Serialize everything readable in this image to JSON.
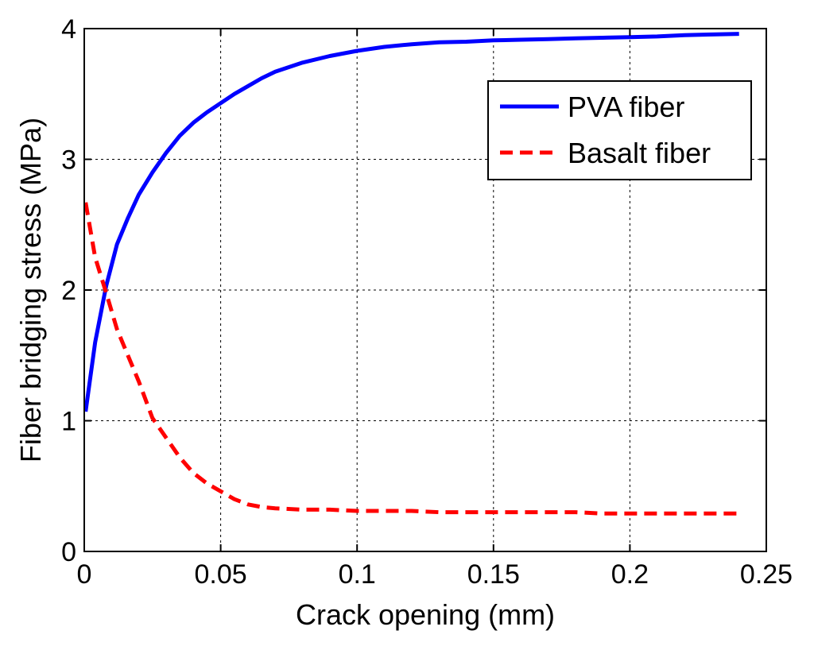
{
  "chart_data": {
    "type": "line",
    "title": "",
    "xlabel": "Crack opening (mm)",
    "ylabel": "Fiber bridging stress (MPa)",
    "xlim": [
      0,
      0.25
    ],
    "ylim": [
      0,
      4
    ],
    "xticks": [
      0,
      0.05,
      0.1,
      0.15,
      0.2,
      0.25
    ],
    "xtick_labels": [
      "0",
      "0.05",
      "0.1",
      "0.15",
      "0.2",
      "0.25"
    ],
    "yticks": [
      0,
      1,
      2,
      3,
      4
    ],
    "ytick_labels": [
      "0",
      "1",
      "2",
      "3",
      "4"
    ],
    "grid": true,
    "legend_position": "top-right",
    "series": [
      {
        "name": "PVA fiber",
        "color": "#0000ff",
        "style": "solid",
        "x": [
          0.0005,
          0.004,
          0.008,
          0.012,
          0.016,
          0.02,
          0.025,
          0.03,
          0.035,
          0.04,
          0.045,
          0.05,
          0.055,
          0.06,
          0.065,
          0.07,
          0.08,
          0.09,
          0.1,
          0.11,
          0.12,
          0.13,
          0.14,
          0.15,
          0.16,
          0.17,
          0.18,
          0.19,
          0.2,
          0.21,
          0.22,
          0.23,
          0.24
        ],
        "y": [
          1.07,
          1.6,
          2.03,
          2.35,
          2.55,
          2.73,
          2.9,
          3.05,
          3.18,
          3.28,
          3.36,
          3.43,
          3.5,
          3.56,
          3.62,
          3.67,
          3.74,
          3.79,
          3.83,
          3.86,
          3.88,
          3.895,
          3.9,
          3.91,
          3.915,
          3.92,
          3.925,
          3.93,
          3.935,
          3.94,
          3.95,
          3.955,
          3.96
        ]
      },
      {
        "name": "Basalt fiber",
        "color": "#ff0000",
        "style": "dashed",
        "x": [
          0.0005,
          0.004,
          0.008,
          0.012,
          0.016,
          0.02,
          0.025,
          0.03,
          0.035,
          0.04,
          0.045,
          0.05,
          0.055,
          0.06,
          0.065,
          0.07,
          0.08,
          0.09,
          0.1,
          0.11,
          0.12,
          0.13,
          0.14,
          0.15,
          0.16,
          0.17,
          0.18,
          0.19,
          0.2,
          0.21,
          0.22,
          0.23,
          0.24
        ],
        "y": [
          2.67,
          2.25,
          1.98,
          1.7,
          1.5,
          1.3,
          1.02,
          0.87,
          0.72,
          0.6,
          0.52,
          0.46,
          0.4,
          0.36,
          0.34,
          0.33,
          0.32,
          0.32,
          0.31,
          0.31,
          0.31,
          0.3,
          0.3,
          0.3,
          0.3,
          0.3,
          0.3,
          0.29,
          0.29,
          0.29,
          0.29,
          0.29,
          0.29
        ]
      }
    ]
  }
}
